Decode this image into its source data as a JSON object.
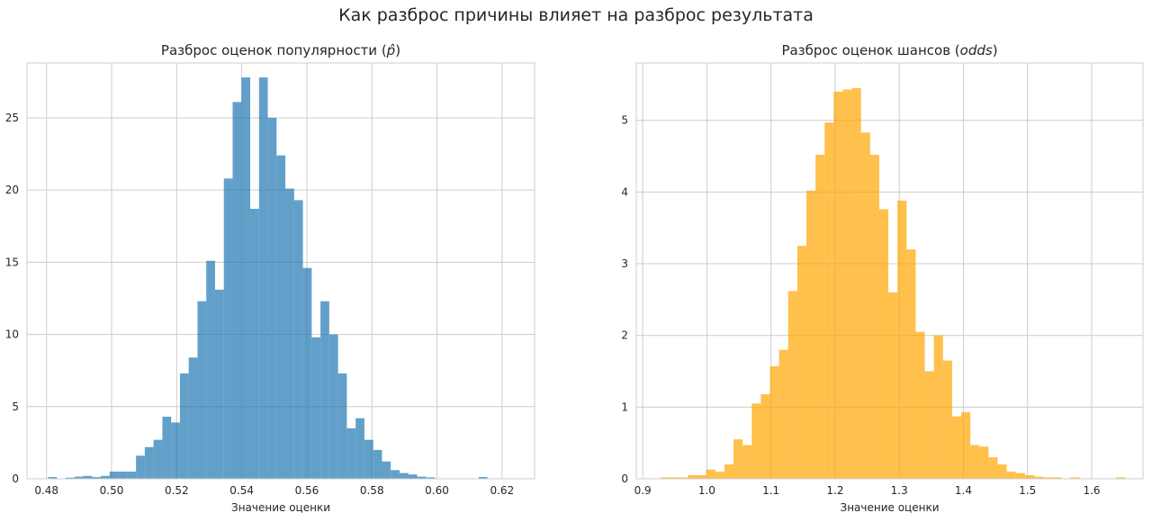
{
  "figure": {
    "suptitle": "Как разброс причины влияет на разброс результата"
  },
  "chart_data": [
    {
      "type": "bar",
      "subtype": "histogram",
      "title_text": "Разброс оценок популярности (",
      "title_math": "p̂",
      "title_close": ")",
      "xlabel": "Значение оценки",
      "ylabel": "",
      "xlim": [
        0.474,
        0.63
      ],
      "ylim": [
        0,
        28.8
      ],
      "xticks": [
        0.48,
        0.5,
        0.52,
        0.54,
        0.56,
        0.58,
        0.6,
        0.62
      ],
      "xtick_labels": [
        "0.48",
        "0.50",
        "0.52",
        "0.54",
        "0.56",
        "0.58",
        "0.60",
        "0.62"
      ],
      "yticks": [
        0,
        5,
        10,
        15,
        20,
        25
      ],
      "ytick_labels": [
        "0",
        "5",
        "10",
        "15",
        "20",
        "25"
      ],
      "bin_start": 0.4805,
      "bin_width": 0.0027,
      "values": [
        0.12,
        0,
        0.08,
        0.15,
        0.2,
        0.12,
        0.2,
        0.5,
        0.5,
        0.5,
        1.6,
        2.2,
        2.7,
        4.3,
        3.9,
        7.3,
        8.4,
        12.3,
        15.1,
        13.1,
        20.8,
        26.1,
        27.8,
        18.7,
        27.8,
        25.0,
        22.4,
        20.1,
        19.3,
        14.6,
        9.8,
        12.3,
        10.0,
        7.3,
        3.5,
        4.2,
        2.7,
        2.0,
        1.2,
        0.6,
        0.4,
        0.3,
        0.15,
        0.1,
        0,
        0,
        0,
        0,
        0,
        0.12
      ],
      "color": "#1f77b4",
      "alpha": 0.7,
      "grid": true
    },
    {
      "type": "bar",
      "subtype": "histogram",
      "title_text": "Разброс оценок шансов (",
      "title_math": "odds",
      "title_close": ")",
      "xlabel": "Значение оценки",
      "ylabel": "",
      "xlim": [
        0.89,
        1.68
      ],
      "ylim": [
        0,
        5.8
      ],
      "xticks": [
        0.9,
        1.0,
        1.1,
        1.2,
        1.3,
        1.4,
        1.5,
        1.6
      ],
      "xtick_labels": [
        "0.9",
        "1.0",
        "1.1",
        "1.2",
        "1.3",
        "1.4",
        "1.5",
        "1.6"
      ],
      "yticks": [
        0,
        1,
        2,
        3,
        4,
        5
      ],
      "ytick_labels": [
        "0",
        "1",
        "2",
        "3",
        "4",
        "5"
      ],
      "bin_start": 0.928,
      "bin_width": 0.0142,
      "values": [
        0.02,
        0.02,
        0.02,
        0.05,
        0.05,
        0.13,
        0.1,
        0.2,
        0.55,
        0.47,
        1.05,
        1.18,
        1.57,
        1.8,
        2.62,
        3.25,
        4.02,
        4.52,
        4.97,
        5.4,
        5.43,
        5.45,
        4.83,
        4.52,
        3.76,
        2.6,
        3.88,
        3.2,
        2.05,
        1.5,
        2.0,
        1.65,
        0.87,
        0.93,
        0.47,
        0.45,
        0.3,
        0.2,
        0.1,
        0.08,
        0.05,
        0.03,
        0.02,
        0.02,
        0,
        0.02,
        0,
        0,
        0,
        0,
        0.02
      ],
      "color": "#ffa500",
      "alpha": 0.7,
      "grid": true
    }
  ]
}
